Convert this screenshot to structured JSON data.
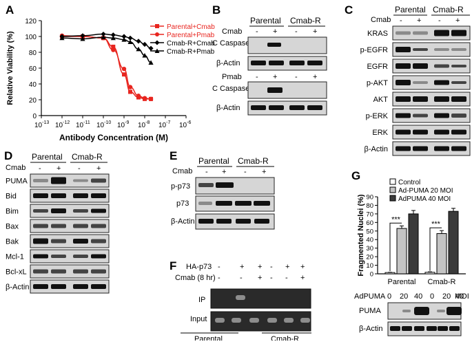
{
  "panels": {
    "A": {
      "letter": "A"
    },
    "B": {
      "letter": "B",
      "groups": [
        "Parental",
        "Cmab-R"
      ],
      "row1_label": "Cmab",
      "row2_label": "Pmab",
      "signs": [
        "-",
        "+",
        "-",
        "+"
      ],
      "blots": [
        "C Caspase-3",
        "β-Actin",
        "C Caspase-3",
        "β-Actin"
      ]
    },
    "C": {
      "letter": "C",
      "groups": [
        "Parental",
        "Cmab-R"
      ],
      "treat_label": "Cmab",
      "signs": [
        "-",
        "+",
        "-",
        "+"
      ],
      "blots": [
        "KRAS",
        "p-EGFR",
        "EGFR",
        "p-AKT",
        "AKT",
        "p-ERK",
        "ERK",
        "β-Actin"
      ]
    },
    "D": {
      "letter": "D",
      "groups": [
        "Parental",
        "Cmab-R"
      ],
      "treat_label": "Cmab",
      "signs": [
        "-",
        "+",
        "-",
        "+"
      ],
      "blots": [
        "PUMA",
        "Bid",
        "Bim",
        "Bax",
        "Bak",
        "Mcl-1",
        "Bcl-xL",
        "β-Actin"
      ]
    },
    "E": {
      "letter": "E",
      "groups": [
        "Parental",
        "Cmab-R"
      ],
      "treat_label": "Cmab",
      "signs": [
        "-",
        "+",
        "-",
        "+"
      ],
      "blots": [
        "p-p73",
        "p73",
        "β-Actin"
      ]
    },
    "F": {
      "letter": "F",
      "row1_label": "HA-p73",
      "row2_label": "Cmab (8 hr)",
      "row1_signs": [
        "-",
        "+",
        "+",
        "-",
        "+",
        "+"
      ],
      "row2_signs": [
        "-",
        "-",
        "+",
        "-",
        "-",
        "+"
      ],
      "blots": [
        "IP",
        "Input"
      ],
      "groups": [
        "Parental",
        "Cmab-R"
      ]
    },
    "G": {
      "letter": "G",
      "blot_label": "AdPUMA",
      "doses": [
        "0",
        "20",
        "40",
        "0",
        "20",
        "40"
      ],
      "dose_unit": "MOI",
      "blots": [
        "PUMA",
        "β-Actin"
      ],
      "significance": "***"
    }
  },
  "chart_data": [
    {
      "type": "line",
      "panel": "A",
      "title": "",
      "xlabel": "Antibody Concentration (M)",
      "ylabel": "Relative Viability (%)",
      "xscale": "log",
      "xlim": [
        1e-13,
        1e-06
      ],
      "ylim": [
        0,
        120
      ],
      "xticks": [
        "10-13",
        "10-12",
        "10-11",
        "10-10",
        "10-9",
        "10-8",
        "10-7",
        "10-6"
      ],
      "yticks": [
        "0",
        "20",
        "40",
        "60",
        "80",
        "100",
        "120"
      ],
      "legend_position": "top-right",
      "series": [
        {
          "name": "Parental+Cmab",
          "color": "#e8251f",
          "marker": "square",
          "x": [
            1e-12,
            1e-11,
            1e-10,
            3e-10,
            1e-09,
            2e-09,
            5e-09,
            1e-08,
            2e-08
          ],
          "y": [
            100,
            100,
            98,
            87,
            52,
            30,
            23,
            21,
            21
          ]
        },
        {
          "name": "Parental+Pmab",
          "color": "#e8251f",
          "marker": "circle",
          "x": [
            1e-12,
            1e-11,
            1e-10,
            3e-10,
            1e-09,
            2e-09,
            5e-09,
            1e-08,
            2e-08
          ],
          "y": [
            101,
            100,
            98,
            83,
            59,
            36,
            25,
            22,
            21
          ]
        },
        {
          "name": "Cmab-R+Cmab",
          "color": "#000000",
          "marker": "diamond",
          "x": [
            1e-12,
            1e-11,
            1e-10,
            3e-10,
            1e-09,
            2e-09,
            5e-09,
            1e-08,
            2e-08
          ],
          "y": [
            100,
            101,
            103,
            102,
            100,
            98,
            94,
            90,
            85
          ]
        },
        {
          "name": "Cmab-R+Pmab",
          "color": "#000000",
          "marker": "triangle",
          "x": [
            1e-12,
            1e-11,
            1e-10,
            3e-10,
            1e-09,
            2e-09,
            5e-09,
            1e-08,
            2e-08
          ],
          "y": [
            98,
            97,
            99,
            98,
            96,
            93,
            84,
            76,
            67
          ]
        }
      ]
    },
    {
      "type": "bar",
      "panel": "G",
      "title": "",
      "xlabel": "",
      "ylabel": "Fragmented Nuclei (%)",
      "ylim": [
        0,
        90
      ],
      "yticks": [
        "0",
        "10",
        "20",
        "30",
        "40",
        "50",
        "60",
        "70",
        "80",
        "90"
      ],
      "categories": [
        "Parental",
        "Cmab-R"
      ],
      "legend_position": "top-right",
      "series": [
        {
          "name": "Control",
          "color": "#ffffff",
          "values": [
            1.5,
            1.8
          ],
          "errors": [
            0.3,
            0.5
          ]
        },
        {
          "name": "Ad-PUMA 20 MOI",
          "color": "#c4c4c4",
          "values": [
            53,
            47
          ],
          "errors": [
            3,
            3.5
          ]
        },
        {
          "name": "AdPUMA 40 MOI",
          "color": "#3b3b3b",
          "values": [
            70,
            73
          ],
          "errors": [
            4,
            3.5
          ]
        }
      ]
    }
  ]
}
